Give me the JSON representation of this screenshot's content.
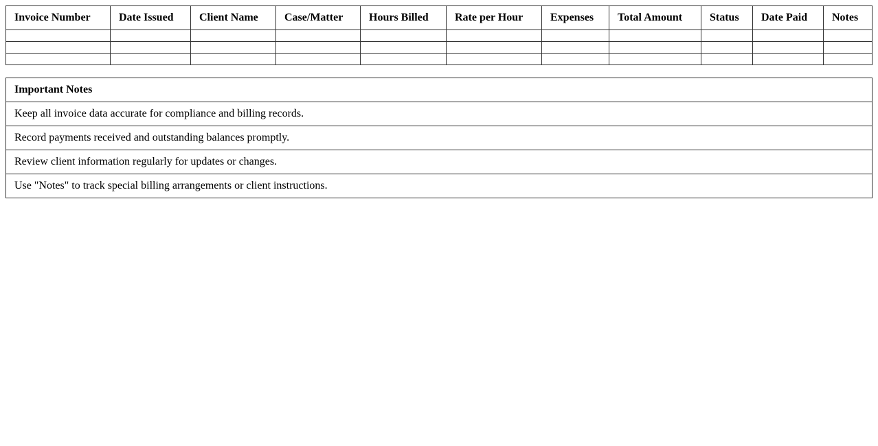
{
  "invoice_table": {
    "headers": [
      "Invoice Number",
      "Date Issued",
      "Client Name",
      "Case/Matter",
      "Hours Billed",
      "Rate per Hour",
      "Expenses",
      "Total Amount",
      "Status",
      "Date Paid",
      "Notes"
    ],
    "rows": [
      [
        "",
        "",
        "",
        "",
        "",
        "",
        "",
        "",
        "",
        "",
        ""
      ],
      [
        "",
        "",
        "",
        "",
        "",
        "",
        "",
        "",
        "",
        "",
        ""
      ],
      [
        "",
        "",
        "",
        "",
        "",
        "",
        "",
        "",
        "",
        "",
        ""
      ]
    ]
  },
  "notes_table": {
    "title": "Important Notes",
    "items": [
      "Keep all invoice data accurate for compliance and billing records.",
      "Record payments received and outstanding balances promptly.",
      "Review client information regularly for updates or changes.",
      "Use \"Notes\" to track special billing arrangements or client instructions."
    ]
  }
}
